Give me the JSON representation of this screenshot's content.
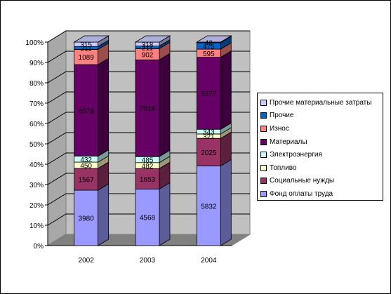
{
  "chart_data": {
    "type": "bar",
    "stacked": "percent",
    "three_d": true,
    "categories": [
      "2002",
      "2003",
      "2004"
    ],
    "y_ticks": [
      "0%",
      "10%",
      "20%",
      "30%",
      "40%",
      "50%",
      "60%",
      "70%",
      "80%",
      "90%",
      "100%"
    ],
    "ylim": [
      0,
      100
    ],
    "grid": true,
    "legend_position": "right",
    "series": [
      {
        "name": "Фонд  оплаты труда",
        "color": "#9999ff",
        "values": [
          3980,
          4568,
          5832
        ]
      },
      {
        "name": "Социальные нужды",
        "color": "#993366",
        "values": [
          1567,
          1653,
          2025
        ]
      },
      {
        "name": "Топливо",
        "color": "#ffffcc",
        "values": [
          450,
          482,
          321
        ]
      },
      {
        "name": "Электроэнергия",
        "color": "#ccffff",
        "values": [
          432,
          485,
          343
        ]
      },
      {
        "name": "Материалы",
        "color": "#660066",
        "values": [
          6578,
          7818,
          5277
        ]
      },
      {
        "name": "Износ",
        "color": "#ff8080",
        "values": [
          1089,
          902,
          595
        ]
      },
      {
        "name": "Прочие",
        "color": "#0066cc",
        "values": [
          211,
          211,
          475
        ]
      },
      {
        "name": "Прочие материальные затраты",
        "color": "#ccccff",
        "values": [
          315,
          318,
          42
        ]
      }
    ]
  }
}
